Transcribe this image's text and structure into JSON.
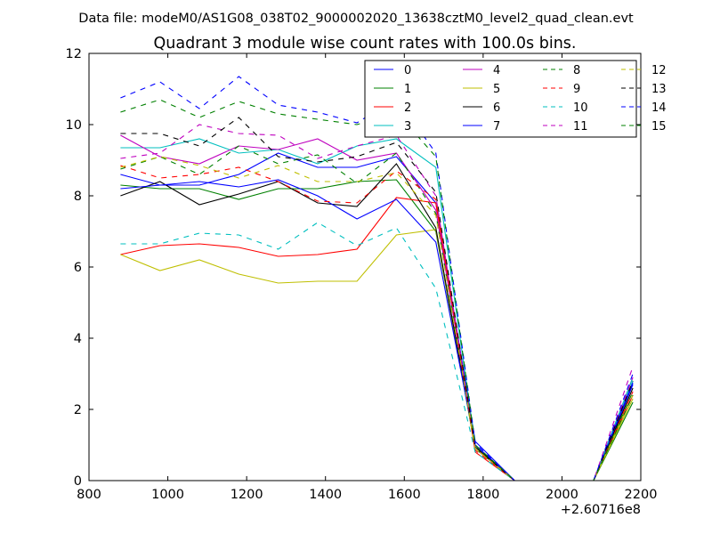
{
  "header": {
    "data_file": "Data file: modeM0/AS1G08_038T02_9000002020_13638cztM0_level2_quad_clean.evt"
  },
  "chart_data": {
    "type": "line",
    "title": "Quadrant 3 module wise count rates with 100.0s bins.",
    "xlabel": "",
    "ylabel": "",
    "x_offset_label": "+2.60716e8",
    "xlim": [
      800,
      2200
    ],
    "ylim": [
      0,
      12
    ],
    "x_ticks": [
      "800",
      "1000",
      "1200",
      "1400",
      "1600",
      "1800",
      "2000",
      "2200"
    ],
    "y_ticks": [
      "0",
      "2",
      "4",
      "6",
      "8",
      "10",
      "12"
    ],
    "grid": false,
    "legend_position": "top-right",
    "x": [
      880,
      980,
      1080,
      1180,
      1280,
      1380,
      1480,
      1580,
      1680,
      1780,
      1880,
      1980,
      2080,
      2180
    ],
    "series": [
      {
        "name": "0",
        "color": "#0000ff",
        "dash": false,
        "values": [
          8.6,
          8.3,
          8.3,
          8.6,
          9.2,
          8.8,
          8.8,
          9.1,
          7.8,
          1.1,
          0,
          0,
          0,
          2.7
        ]
      },
      {
        "name": "1",
        "color": "#008000",
        "dash": false,
        "values": [
          8.3,
          8.2,
          8.2,
          7.9,
          8.2,
          8.2,
          8.4,
          8.45,
          7.0,
          0.9,
          0,
          0,
          0,
          2.2
        ]
      },
      {
        "name": "2",
        "color": "#ff0000",
        "dash": false,
        "values": [
          6.35,
          6.6,
          6.65,
          6.55,
          6.3,
          6.35,
          6.5,
          7.95,
          7.8,
          0.8,
          0,
          0,
          0,
          2.4
        ]
      },
      {
        "name": "3",
        "color": "#00bfbf",
        "dash": false,
        "values": [
          9.35,
          9.35,
          9.6,
          9.2,
          9.3,
          8.9,
          9.4,
          9.6,
          8.8,
          1.0,
          0,
          0,
          0,
          2.8
        ]
      },
      {
        "name": "4",
        "color": "#bf00bf",
        "dash": false,
        "values": [
          9.7,
          9.1,
          8.9,
          9.4,
          9.3,
          9.6,
          9.0,
          9.2,
          7.6,
          0.9,
          0,
          0,
          0,
          2.9
        ]
      },
      {
        "name": "5",
        "color": "#bfbf00",
        "dash": false,
        "values": [
          6.35,
          5.9,
          6.2,
          5.8,
          5.55,
          5.6,
          5.6,
          6.9,
          7.05,
          0.9,
          0,
          0,
          0,
          2.3
        ]
      },
      {
        "name": "6",
        "color": "#000000",
        "dash": false,
        "values": [
          8.0,
          8.4,
          7.75,
          8.05,
          8.4,
          7.8,
          7.7,
          8.9,
          7.1,
          0.95,
          0,
          0,
          0,
          2.6
        ]
      },
      {
        "name": "7",
        "color": "#0000ff",
        "dash": false,
        "values": [
          8.2,
          8.3,
          8.4,
          8.25,
          8.45,
          8.0,
          7.35,
          7.9,
          6.7,
          1.0,
          0,
          0,
          0,
          2.75
        ]
      },
      {
        "name": "8",
        "color": "#008000",
        "dash": true,
        "values": [
          8.75,
          9.1,
          8.6,
          9.4,
          8.9,
          9.15,
          8.35,
          9.2,
          7.5,
          0.9,
          0,
          0,
          0,
          2.5
        ]
      },
      {
        "name": "9",
        "color": "#ff0000",
        "dash": true,
        "values": [
          8.85,
          8.5,
          8.6,
          8.8,
          8.4,
          7.85,
          7.8,
          8.7,
          7.9,
          0.85,
          0,
          0,
          0,
          2.5
        ]
      },
      {
        "name": "10",
        "color": "#00bfbf",
        "dash": true,
        "values": [
          6.65,
          6.65,
          6.95,
          6.9,
          6.5,
          7.25,
          6.6,
          7.1,
          5.4,
          0.8,
          0,
          0,
          0,
          2.9
        ]
      },
      {
        "name": "11",
        "color": "#bf00bf",
        "dash": true,
        "values": [
          9.05,
          9.2,
          10.0,
          9.75,
          9.7,
          9.05,
          9.4,
          9.7,
          8.0,
          0.9,
          0,
          0,
          0,
          3.2
        ]
      },
      {
        "name": "12",
        "color": "#bfbf00",
        "dash": true,
        "values": [
          8.8,
          9.1,
          8.85,
          8.5,
          8.85,
          8.4,
          8.4,
          8.65,
          7.45,
          0.9,
          0,
          0,
          0,
          2.4
        ]
      },
      {
        "name": "13",
        "color": "#000000",
        "dash": true,
        "values": [
          9.75,
          9.75,
          9.4,
          10.2,
          9.1,
          8.95,
          9.1,
          9.5,
          8.1,
          0.95,
          0,
          0,
          0,
          2.8
        ]
      },
      {
        "name": "14",
        "color": "#0000ff",
        "dash": true,
        "values": [
          10.75,
          11.2,
          10.45,
          11.35,
          10.55,
          10.35,
          10.05,
          10.75,
          9.2,
          1.05,
          0,
          0,
          0,
          3.0
        ]
      },
      {
        "name": "15",
        "color": "#008000",
        "dash": true,
        "values": [
          10.35,
          10.7,
          10.2,
          10.65,
          10.3,
          10.15,
          10.0,
          10.35,
          9.1,
          1.0,
          0,
          0,
          0,
          2.4
        ]
      }
    ]
  }
}
